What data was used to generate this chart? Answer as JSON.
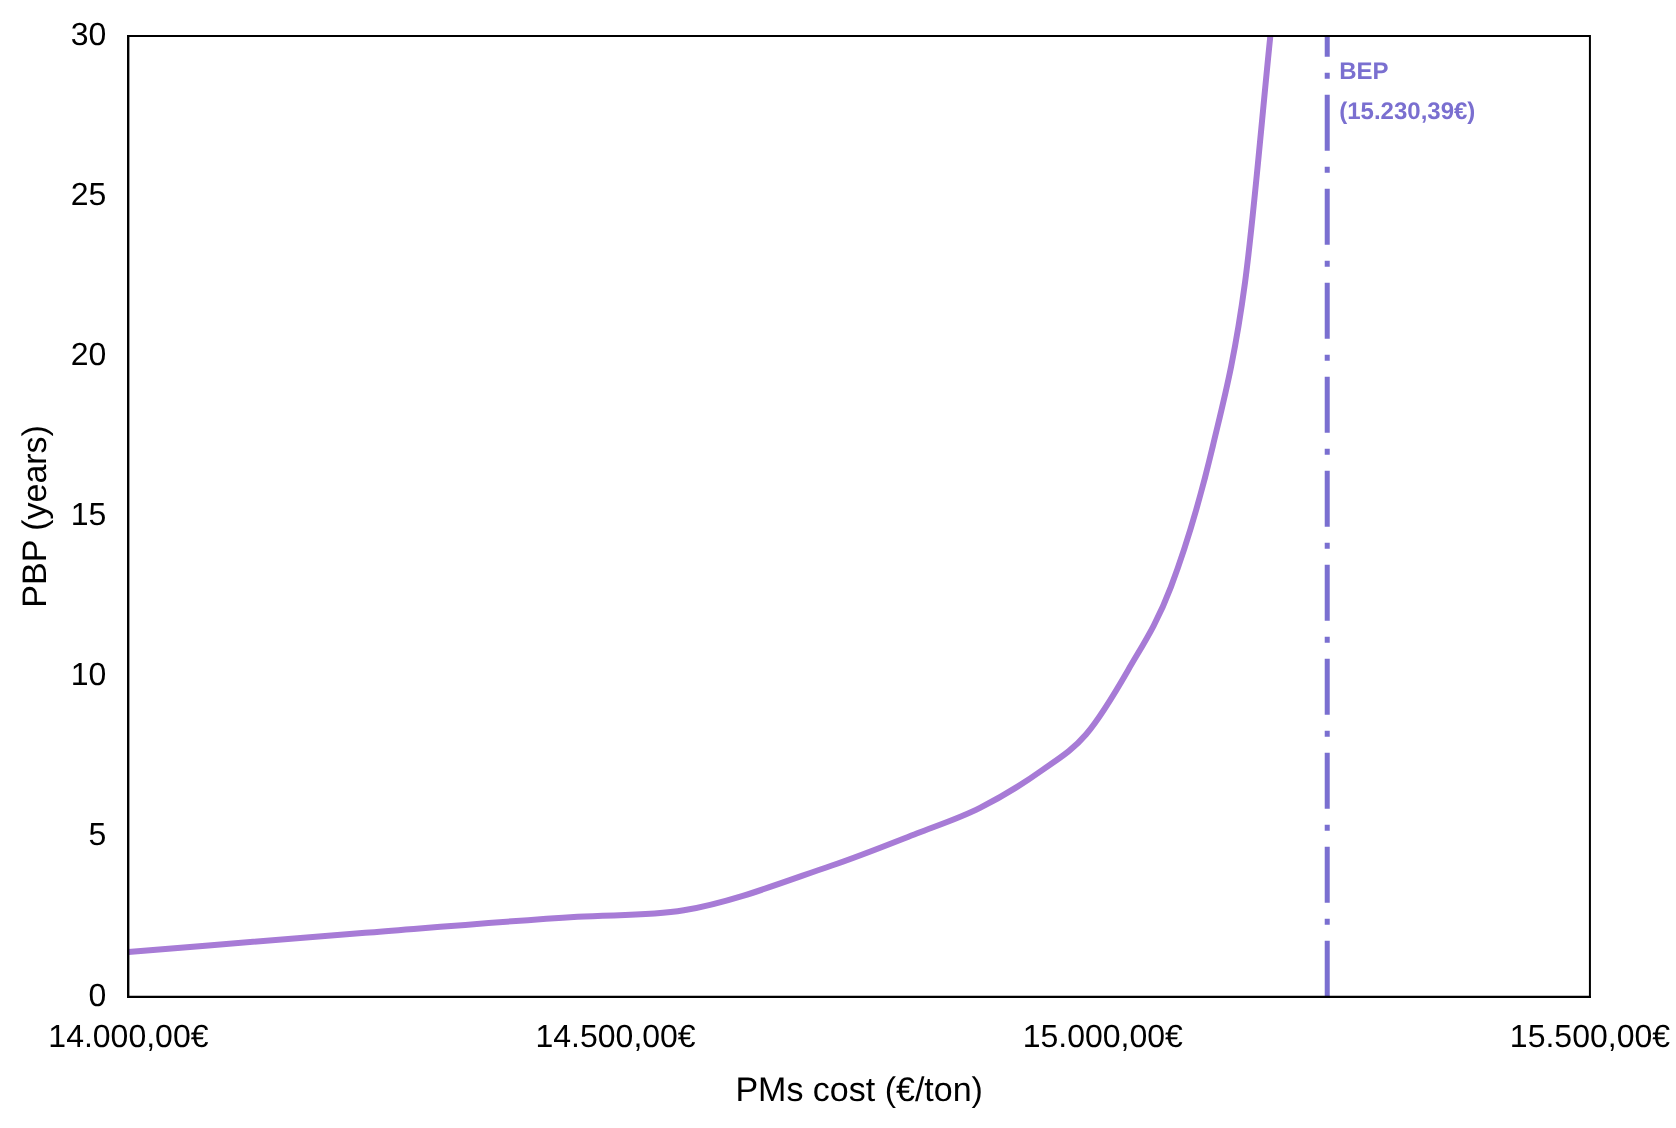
{
  "chart_data": {
    "type": "line",
    "xlabel": "PMs cost (€/ton)",
    "ylabel": "PBP (years)",
    "x": [
      14000,
      14243,
      14461,
      14570,
      14722,
      14809,
      14874,
      14939,
      14983,
      15026,
      15070,
      15113,
      15146,
      15172
    ],
    "series": [
      {
        "color": "#a77bd6",
        "values": [
          1.4,
          2.0,
          2.5,
          2.7,
          4.1,
          5.1,
          5.9,
          7.1,
          8.2,
          10.2,
          12.8,
          17.2,
          22.3,
          30
        ]
      }
    ],
    "xlim": [
      14000,
      15500
    ],
    "xticks": [
      {
        "value": 14000,
        "label": "14.000,00€"
      },
      {
        "value": 14500,
        "label": "14.500,00€"
      },
      {
        "value": 15000,
        "label": "15.000,00€"
      },
      {
        "value": 15500,
        "label": "15.500,00€"
      }
    ],
    "ylim": [
      0,
      30
    ],
    "yticks": [
      0,
      5,
      10,
      15,
      20,
      25,
      30
    ],
    "ref_lines": [
      {
        "axis": "x",
        "value": 15230.39,
        "label": "BEP (15.230,39€)",
        "color": "#7a6fd0",
        "line_style": "dashed"
      }
    ],
    "grid": false,
    "legend": false,
    "marker": "none",
    "line_style": "solid"
  }
}
